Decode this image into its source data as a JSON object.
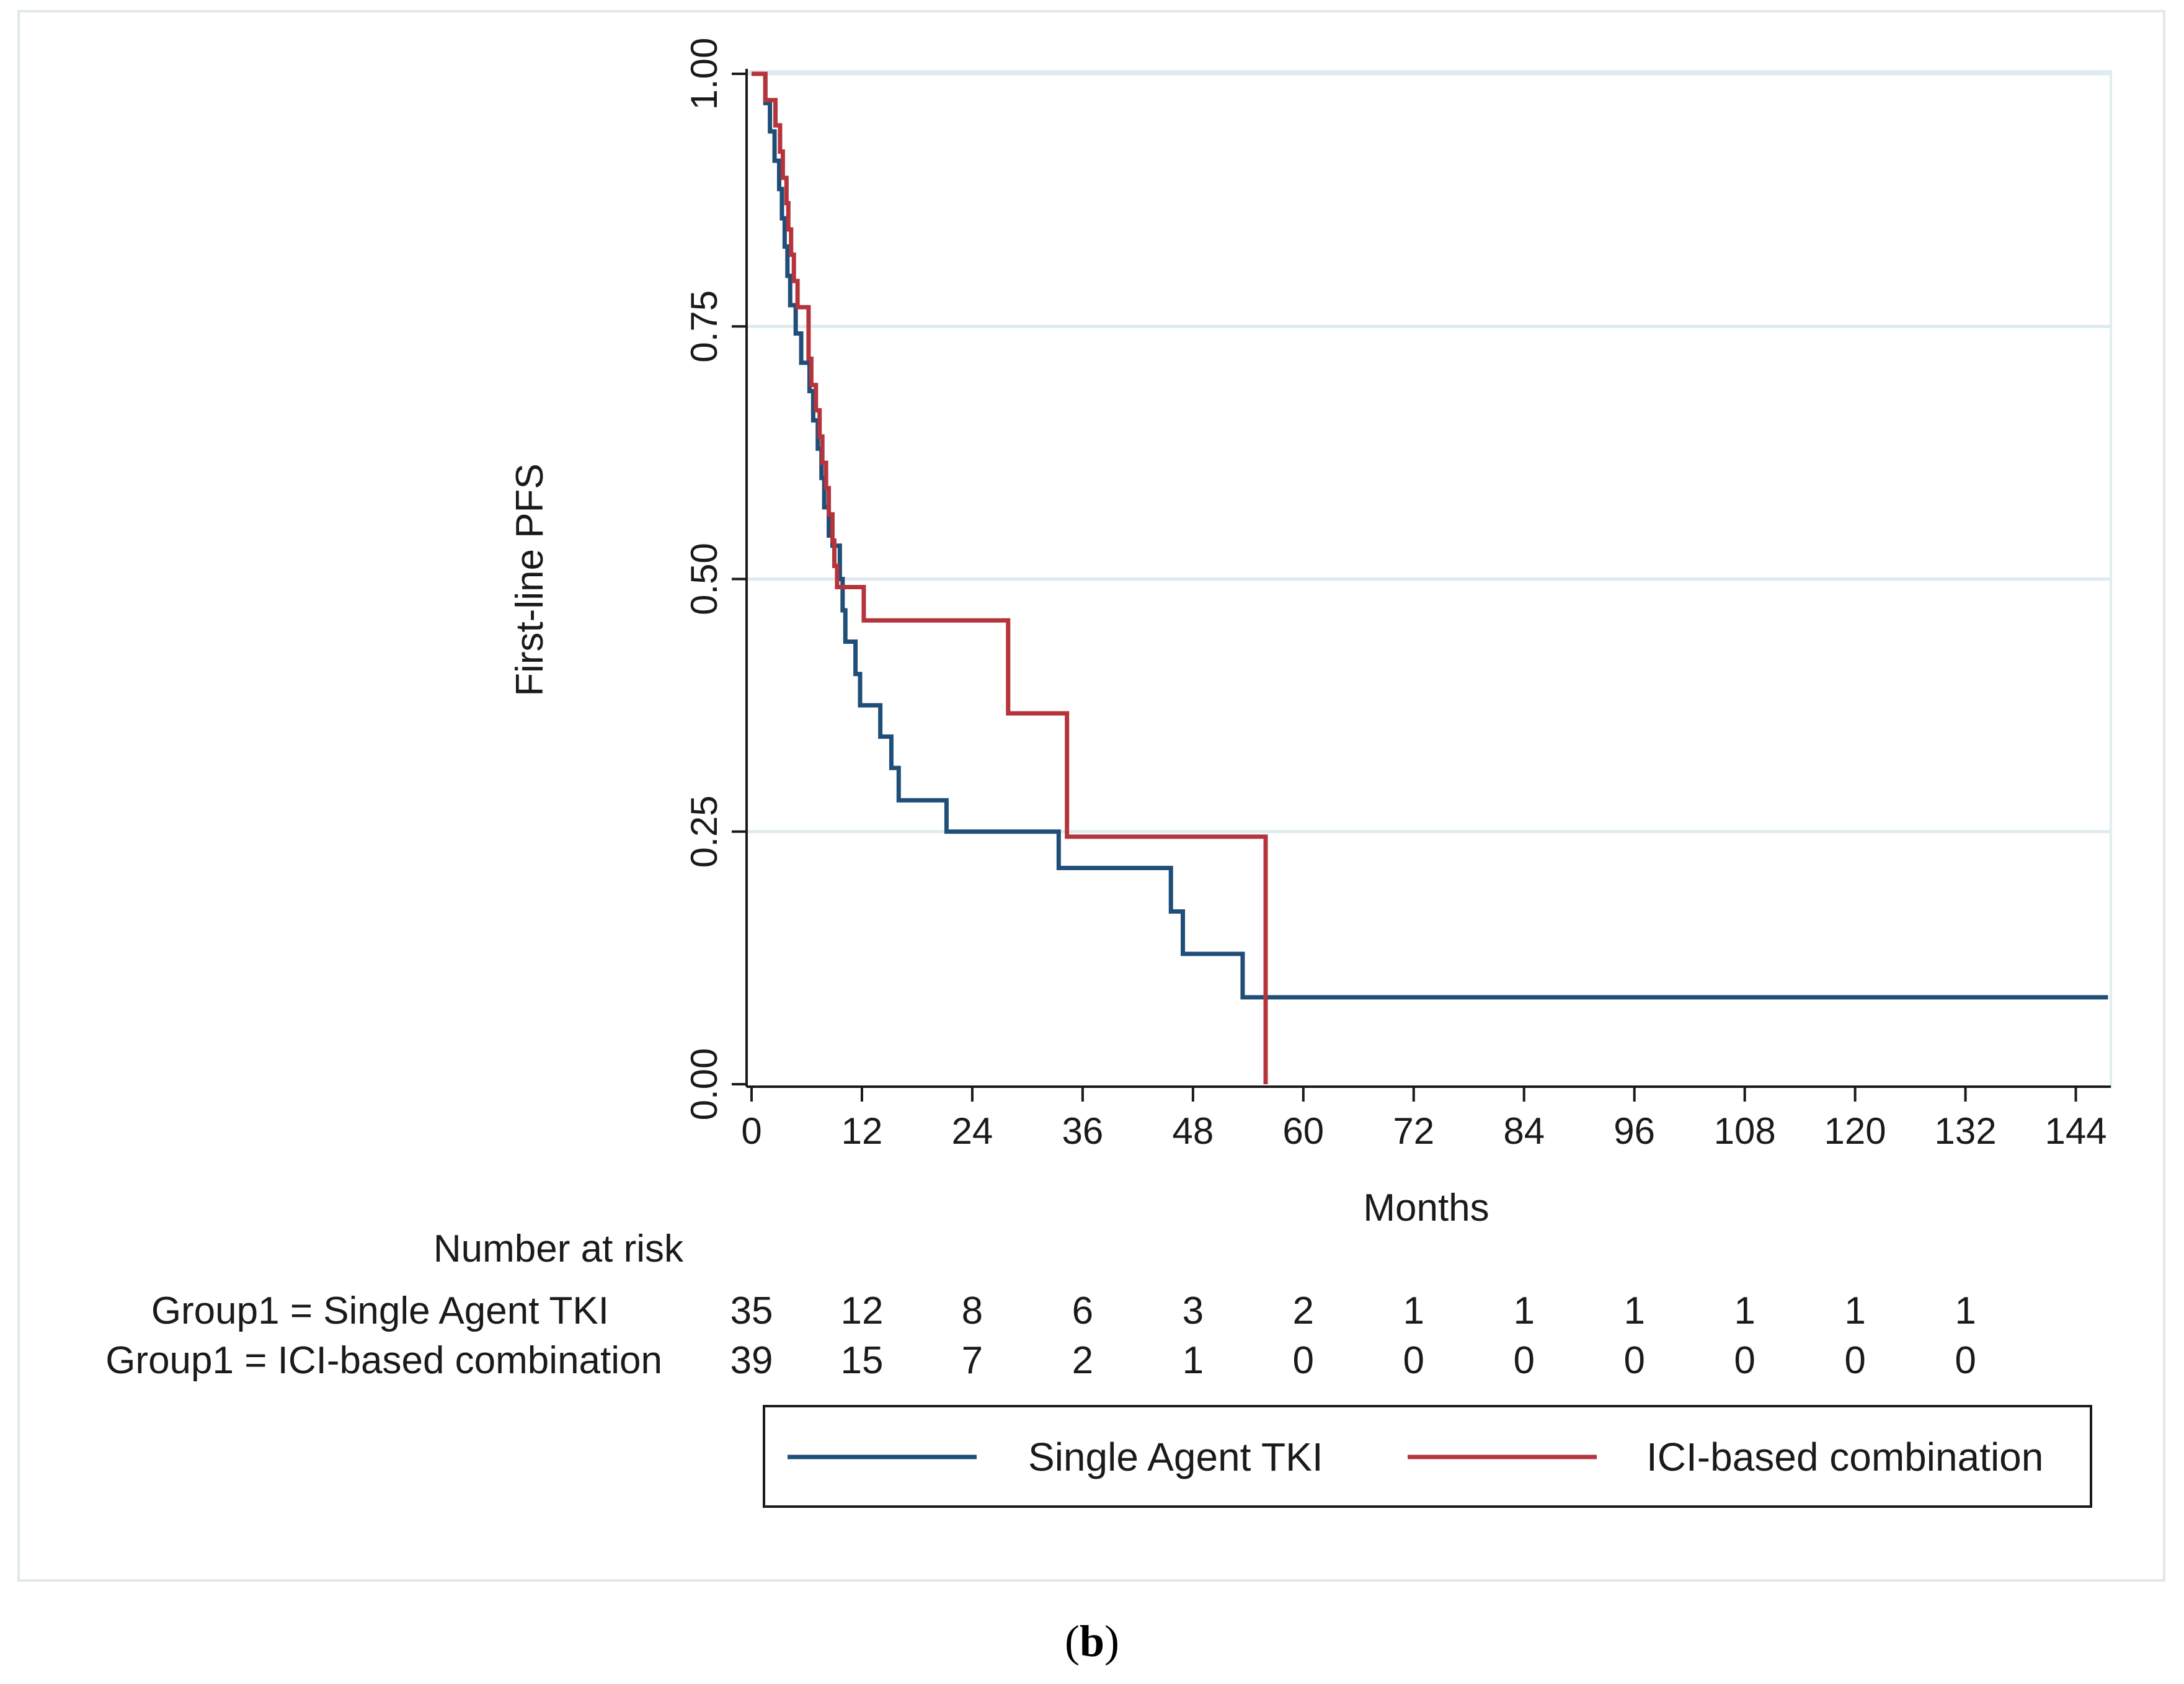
{
  "chart_data": {
    "type": "line",
    "subtype": "kaplan-meier step",
    "xlabel": "Months",
    "ylabel": "First-line PFS",
    "xlim": [
      0,
      146
    ],
    "ylim": [
      0,
      1
    ],
    "xticks": [
      0,
      12,
      24,
      36,
      48,
      60,
      72,
      84,
      96,
      108,
      120,
      132,
      144
    ],
    "yticks": [
      0.0,
      0.25,
      0.5,
      0.75,
      1.0
    ],
    "ytick_labels": [
      "0.00",
      "0.25",
      "0.50",
      "0.75",
      "1.00"
    ],
    "grid": "horizontal",
    "series": [
      {
        "name": "Single Agent TKI",
        "color": "#1f4e79",
        "steps": [
          [
            0,
            1.0
          ],
          [
            1.5,
            0.971
          ],
          [
            2.0,
            0.943
          ],
          [
            2.5,
            0.914
          ],
          [
            3.0,
            0.886
          ],
          [
            3.3,
            0.857
          ],
          [
            3.6,
            0.829
          ],
          [
            3.9,
            0.8
          ],
          [
            4.2,
            0.771
          ],
          [
            4.8,
            0.743
          ],
          [
            5.4,
            0.714
          ],
          [
            6.3,
            0.686
          ],
          [
            6.7,
            0.657
          ],
          [
            7.2,
            0.629
          ],
          [
            7.6,
            0.6
          ],
          [
            7.9,
            0.571
          ],
          [
            8.4,
            0.543
          ],
          [
            8.8,
            0.533
          ],
          [
            9.6,
            0.5
          ],
          [
            9.9,
            0.469
          ],
          [
            10.2,
            0.438
          ],
          [
            11.3,
            0.406
          ],
          [
            11.8,
            0.375
          ],
          [
            14.0,
            0.344
          ],
          [
            15.2,
            0.313
          ],
          [
            16.0,
            0.281
          ],
          [
            21.2,
            0.25
          ],
          [
            33.4,
            0.214
          ],
          [
            45.6,
            0.171
          ],
          [
            46.9,
            0.129
          ],
          [
            53.4,
            0.086
          ],
          [
            147.5,
            0.086
          ]
        ]
      },
      {
        "name": "ICI-based combination",
        "color": "#b5343c",
        "steps": [
          [
            0,
            1.0
          ],
          [
            1.5,
            0.974
          ],
          [
            2.6,
            0.949
          ],
          [
            3.1,
            0.923
          ],
          [
            3.4,
            0.897
          ],
          [
            3.8,
            0.872
          ],
          [
            4.0,
            0.846
          ],
          [
            4.3,
            0.821
          ],
          [
            4.6,
            0.795
          ],
          [
            5.0,
            0.769
          ],
          [
            6.2,
            0.718
          ],
          [
            6.5,
            0.692
          ],
          [
            7.0,
            0.667
          ],
          [
            7.4,
            0.641
          ],
          [
            7.7,
            0.615
          ],
          [
            8.1,
            0.59
          ],
          [
            8.4,
            0.564
          ],
          [
            8.8,
            0.538
          ],
          [
            9.0,
            0.513
          ],
          [
            9.3,
            0.492
          ],
          [
            12.2,
            0.459
          ],
          [
            27.9,
            0.367
          ],
          [
            34.3,
            0.245
          ],
          [
            55.9,
            0.0
          ]
        ]
      }
    ],
    "number_at_risk": {
      "title": "Number at risk",
      "rows": [
        {
          "label": "Group1 = Single Agent TKI",
          "values": [
            35,
            12,
            8,
            6,
            3,
            2,
            1,
            1,
            1,
            1,
            1,
            1
          ]
        },
        {
          "label": "Group1 = ICI-based combination",
          "values": [
            39,
            15,
            7,
            2,
            1,
            0,
            0,
            0,
            0,
            0,
            0,
            0
          ]
        }
      ]
    },
    "legend": {
      "placement": "bottom",
      "entries": [
        "Single Agent TKI",
        "ICI-based combination"
      ]
    },
    "panel_label": "b"
  }
}
